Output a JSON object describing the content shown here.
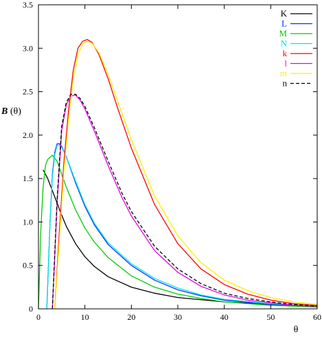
{
  "chart_data": {
    "type": "line",
    "title": "",
    "xlabel": "θ",
    "ylabel_prefix": "B",
    "ylabel_suffix": "(θ)",
    "xlim": [
      0,
      60
    ],
    "ylim": [
      0,
      3.5
    ],
    "xticks": [
      0,
      10,
      20,
      30,
      40,
      50,
      60
    ],
    "yticks": [
      0,
      0.5,
      1.0,
      1.5,
      2.0,
      2.5,
      3.0,
      3.5
    ],
    "ytick_labels": [
      "0",
      "0.5",
      "1.0",
      "1.5",
      "2.0",
      "2.5",
      "3.0",
      "3.5"
    ],
    "grid": false,
    "legend_position": "top-right",
    "series": [
      {
        "name": "K",
        "color": "#000000",
        "dash": "solid",
        "x": [
          1,
          2,
          3,
          4,
          5,
          6,
          8,
          10,
          12,
          15,
          20,
          25,
          30,
          40,
          50,
          60
        ],
        "y": [
          1.6,
          1.5,
          1.36,
          1.22,
          1.08,
          0.95,
          0.75,
          0.6,
          0.49,
          0.37,
          0.25,
          0.18,
          0.13,
          0.08,
          0.05,
          0.03
        ]
      },
      {
        "name": "L",
        "color": "#0033ff",
        "dash": "solid",
        "x": [
          1.8,
          2.5,
          3,
          3.5,
          4,
          4.5,
          5,
          6,
          7,
          8,
          10,
          12,
          15,
          20,
          25,
          30,
          35,
          40,
          50,
          60
        ],
        "y": [
          0,
          1.0,
          1.55,
          1.8,
          1.9,
          1.9,
          1.87,
          1.75,
          1.6,
          1.45,
          1.18,
          0.97,
          0.74,
          0.5,
          0.33,
          0.22,
          0.15,
          0.1,
          0.05,
          0.03
        ]
      },
      {
        "name": "M",
        "color": "#00cc00",
        "dash": "solid",
        "x": [
          0,
          0.5,
          1,
          1.5,
          2,
          3,
          4,
          5,
          6,
          8,
          10,
          12,
          15,
          20,
          25,
          30,
          35,
          40,
          50,
          60
        ],
        "y": [
          0,
          0.9,
          1.4,
          1.65,
          1.72,
          1.77,
          1.7,
          1.55,
          1.4,
          1.14,
          0.93,
          0.77,
          0.59,
          0.38,
          0.25,
          0.17,
          0.12,
          0.08,
          0.04,
          0.02
        ]
      },
      {
        "name": "N",
        "color": "#00e5e5",
        "dash": "solid",
        "x": [
          1.8,
          2.5,
          3,
          3.5,
          4,
          4.5,
          5,
          6,
          7,
          8,
          10,
          12,
          15,
          20,
          25,
          30,
          35,
          40,
          50,
          60
        ],
        "y": [
          0,
          1.0,
          1.52,
          1.77,
          1.88,
          1.88,
          1.86,
          1.75,
          1.61,
          1.47,
          1.2,
          0.99,
          0.76,
          0.52,
          0.35,
          0.24,
          0.16,
          0.11,
          0.06,
          0.03
        ]
      },
      {
        "name": "k",
        "color": "#ff0000",
        "dash": "solid",
        "x": [
          3.5,
          4.5,
          5.5,
          6.5,
          7.5,
          8.5,
          9.5,
          10.5,
          11.5,
          13,
          15,
          17,
          20,
          25,
          30,
          35,
          40,
          45,
          50,
          55,
          60
        ],
        "y": [
          0,
          0.9,
          1.7,
          2.3,
          2.75,
          3.0,
          3.08,
          3.1,
          3.07,
          2.93,
          2.65,
          2.32,
          1.85,
          1.2,
          0.75,
          0.46,
          0.28,
          0.17,
          0.1,
          0.06,
          0.04
        ]
      },
      {
        "name": "l",
        "color": "#e600e6",
        "dash": "solid",
        "x": [
          3,
          4,
          5,
          6,
          7,
          8,
          9,
          10,
          12,
          15,
          18,
          20,
          25,
          30,
          35,
          40,
          45,
          50,
          55,
          60
        ],
        "y": [
          0,
          1.2,
          2.05,
          2.35,
          2.45,
          2.46,
          2.4,
          2.3,
          2.05,
          1.65,
          1.28,
          1.07,
          0.67,
          0.42,
          0.26,
          0.16,
          0.1,
          0.07,
          0.04,
          0.03
        ]
      },
      {
        "name": "m",
        "color": "#ffee00",
        "dash": "solid",
        "x": [
          3.5,
          4.5,
          5.5,
          6.5,
          7.5,
          8.5,
          9.5,
          10.5,
          11.5,
          13,
          15,
          17,
          20,
          25,
          30,
          35,
          40,
          45,
          50,
          55,
          60
        ],
        "y": [
          0,
          0.8,
          1.6,
          2.2,
          2.65,
          2.93,
          3.05,
          3.08,
          3.06,
          2.95,
          2.7,
          2.4,
          1.95,
          1.3,
          0.84,
          0.53,
          0.33,
          0.21,
          0.13,
          0.08,
          0.05
        ]
      },
      {
        "name": "n",
        "color": "#000000",
        "dash": "dashed",
        "x": [
          3,
          4,
          5,
          6,
          7,
          8,
          9,
          10,
          12,
          15,
          18,
          20,
          25,
          30,
          35,
          40,
          45,
          50,
          55,
          60
        ],
        "y": [
          0,
          1.25,
          2.1,
          2.38,
          2.47,
          2.47,
          2.42,
          2.33,
          2.09,
          1.7,
          1.33,
          1.12,
          0.72,
          0.46,
          0.29,
          0.18,
          0.12,
          0.08,
          0.05,
          0.03
        ]
      }
    ]
  }
}
